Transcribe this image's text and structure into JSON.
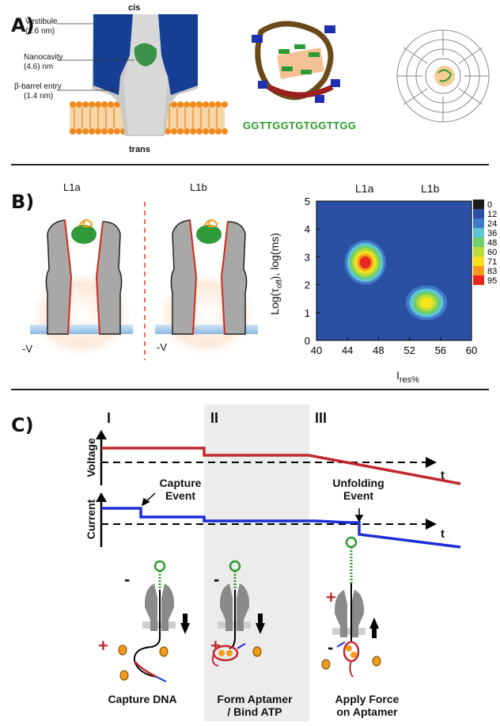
{
  "panelA": {
    "label": "A)",
    "cis": "cis",
    "trans": "trans",
    "annotations": [
      "Vestibule",
      "(2.6 nm)",
      "Nanocavity",
      "(4.6) nm",
      "β-barrel entry",
      "(1.4 nm)"
    ],
    "sequence": "GGTTGGTGTGGTTGG"
  },
  "panelB": {
    "label": "B)",
    "schematic_titles": [
      "L1a",
      "L1b"
    ],
    "voltage_labels": [
      "-V",
      "-V"
    ]
  },
  "chart_data": {
    "type": "heatmap",
    "top_labels": [
      "L1a",
      "L1b"
    ],
    "xlabel_main": "I",
    "xlabel_sub": "res%",
    "ylabel": "Log(τ_off), log(ms)",
    "ylabel_main": "Log(τ",
    "ylabel_sub": "off",
    "ylabel_tail": "), log(ms)",
    "xlim": [
      40,
      60
    ],
    "ylim": [
      0,
      5
    ],
    "xticks": [
      40,
      44,
      48,
      52,
      56,
      60
    ],
    "yticks": [
      0,
      1,
      2,
      3,
      4,
      5
    ],
    "colorbar_labels": [
      "0",
      "12",
      "24",
      "36",
      "48",
      "60",
      "71",
      "83",
      "95"
    ],
    "colorbar_colors": [
      "#1a1a1a",
      "#2b4fa3",
      "#3f7bc9",
      "#5ec4d6",
      "#6fcf6a",
      "#b7dc3a",
      "#f4e21b",
      "#f59a1e",
      "#e8271f"
    ],
    "background_color": "#2b4fa3",
    "peaks": [
      {
        "name": "L1a",
        "x": 46.3,
        "y": 2.8,
        "max": 95
      },
      {
        "name": "L1b",
        "x": 54.2,
        "y": 1.35,
        "max": 71
      }
    ]
  },
  "panelC": {
    "label": "C)",
    "stages": [
      "I",
      "II",
      "III"
    ],
    "voltage_axis": "Voltage",
    "current_axis": "Current",
    "time_label": "t",
    "capture_event": [
      "Capture",
      "Event"
    ],
    "unfolding_event": [
      "Unfolding",
      "Event"
    ],
    "steps": [
      {
        "caption": [
          "Capture DNA"
        ],
        "signs": [
          "-",
          "+"
        ]
      },
      {
        "caption": [
          "Form Aptamer",
          "/ Bind ATP"
        ],
        "signs": [
          "-",
          "+"
        ]
      },
      {
        "caption": [
          "Apply Force",
          "on Aptamer"
        ],
        "signs": [
          "+",
          "-"
        ]
      }
    ],
    "trace_colors": {
      "voltage": "#c0282d",
      "current": "#1c2fd6"
    }
  }
}
